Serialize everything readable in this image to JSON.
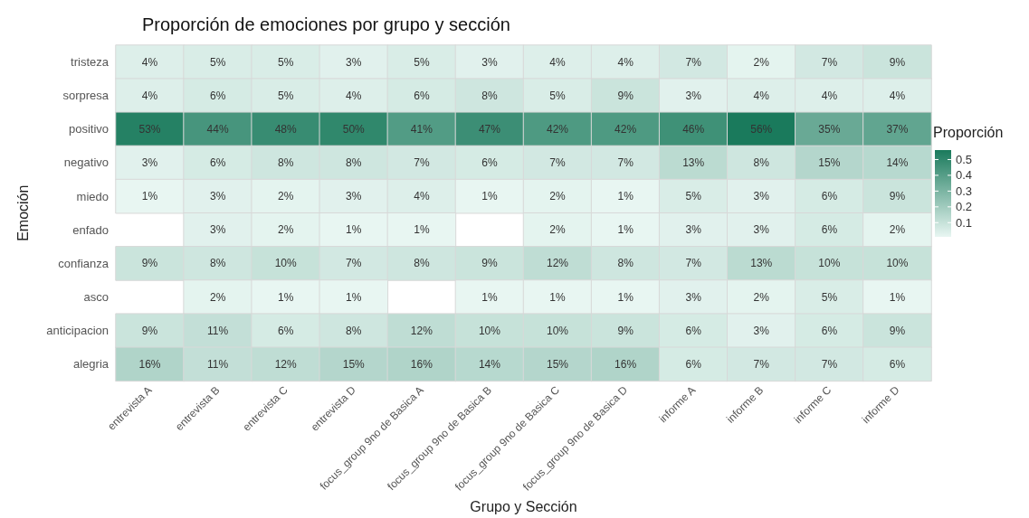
{
  "chart_data": {
    "type": "heatmap",
    "title": "Proporción de emociones por grupo y sección",
    "xlabel": "Grupo y Sección",
    "ylabel": "Emoción",
    "legend_title": "Proporción",
    "categories": [
      "entrevista A",
      "entrevista B",
      "entrevista C",
      "entrevista D",
      "focus_group 9no de Basica A",
      "focus_group 9no de Basica B",
      "focus_group 9no de Basica C",
      "focus_group 9no de Basica D",
      "informe A",
      "informe B",
      "informe C",
      "informe D"
    ],
    "y_categories": [
      "tristeza",
      "sorpresa",
      "positivo",
      "negativo",
      "miedo",
      "enfado",
      "confianza",
      "asco",
      "anticipacion",
      "alegria"
    ],
    "cells": [
      [
        0.04,
        0.05,
        0.05,
        0.03,
        0.05,
        0.03,
        0.04,
        0.04,
        0.07,
        0.02,
        0.07,
        0.09
      ],
      [
        0.04,
        0.06,
        0.05,
        0.04,
        0.06,
        0.08,
        0.05,
        0.09,
        0.03,
        0.04,
        0.04,
        0.04
      ],
      [
        0.53,
        0.44,
        0.48,
        0.5,
        0.41,
        0.47,
        0.42,
        0.42,
        0.46,
        0.56,
        0.35,
        0.37
      ],
      [
        0.03,
        0.06,
        0.08,
        0.08,
        0.07,
        0.06,
        0.07,
        0.07,
        0.13,
        0.08,
        0.15,
        0.14
      ],
      [
        0.01,
        0.03,
        0.02,
        0.03,
        0.04,
        0.01,
        0.02,
        0.01,
        0.05,
        0.03,
        0.06,
        0.09
      ],
      [
        null,
        0.03,
        0.02,
        0.01,
        0.01,
        null,
        0.02,
        0.01,
        0.03,
        0.03,
        0.06,
        0.02
      ],
      [
        0.09,
        0.08,
        0.1,
        0.07,
        0.08,
        0.09,
        0.12,
        0.08,
        0.07,
        0.13,
        0.1,
        0.1
      ],
      [
        null,
        0.02,
        0.01,
        0.01,
        null,
        0.01,
        0.01,
        0.01,
        0.03,
        0.02,
        0.05,
        0.01
      ],
      [
        0.09,
        0.11,
        0.06,
        0.08,
        0.12,
        0.1,
        0.1,
        0.09,
        0.06,
        0.03,
        0.06,
        0.09
      ],
      [
        0.16,
        0.11,
        0.12,
        0.15,
        0.16,
        0.14,
        0.15,
        0.16,
        0.06,
        0.07,
        0.07,
        0.06
      ]
    ],
    "cell_labels": [
      [
        "4%",
        "5%",
        "5%",
        "3%",
        "5%",
        "3%",
        "4%",
        "4%",
        "7%",
        "2%",
        "7%",
        "9%"
      ],
      [
        "4%",
        "6%",
        "5%",
        "4%",
        "6%",
        "8%",
        "5%",
        "9%",
        "3%",
        "4%",
        "4%",
        "4%"
      ],
      [
        "53%",
        "44%",
        "48%",
        "50%",
        "41%",
        "47%",
        "42%",
        "42%",
        "46%",
        "56%",
        "35%",
        "37%"
      ],
      [
        "3%",
        "6%",
        "8%",
        "8%",
        "7%",
        "6%",
        "7%",
        "7%",
        "13%",
        "8%",
        "15%",
        "14%"
      ],
      [
        "1%",
        "3%",
        "2%",
        "3%",
        "4%",
        "1%",
        "2%",
        "1%",
        "5%",
        "3%",
        "6%",
        "9%"
      ],
      [
        null,
        "3%",
        "2%",
        "1%",
        "1%",
        null,
        "2%",
        "1%",
        "3%",
        "3%",
        "6%",
        "2%"
      ],
      [
        "9%",
        "8%",
        "10%",
        "7%",
        "8%",
        "9%",
        "12%",
        "8%",
        "7%",
        "13%",
        "10%",
        "10%"
      ],
      [
        null,
        "2%",
        "1%",
        "1%",
        null,
        "1%",
        "1%",
        "1%",
        "3%",
        "2%",
        "5%",
        "1%"
      ],
      [
        "9%",
        "11%",
        "6%",
        "8%",
        "12%",
        "10%",
        "10%",
        "9%",
        "6%",
        "3%",
        "6%",
        "9%"
      ],
      [
        "16%",
        "11%",
        "12%",
        "15%",
        "16%",
        "14%",
        "15%",
        "16%",
        "6%",
        "7%",
        "7%",
        "6%"
      ]
    ],
    "clim": [
      0.01,
      0.56
    ],
    "cticks": [
      0.1,
      0.2,
      0.3,
      0.4,
      0.5
    ]
  }
}
